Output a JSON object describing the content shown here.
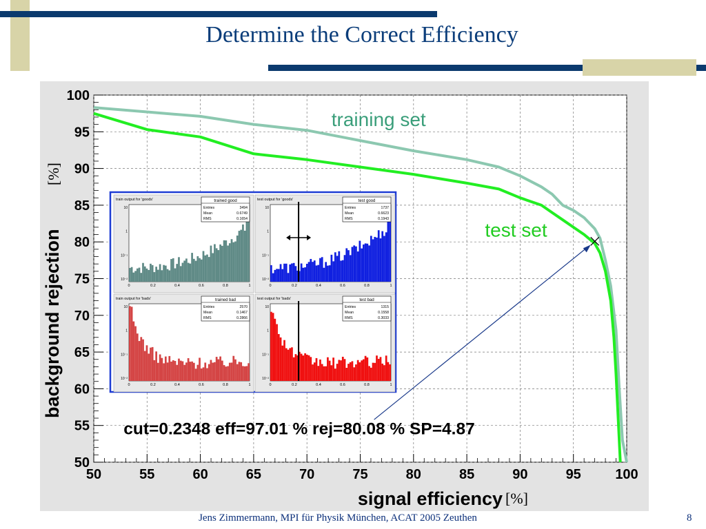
{
  "slide": {
    "title": "Determine the Correct Efficiency",
    "footer": "Jens Zimmermann, MPI für Physik München, ACAT 2005 Zeuthen",
    "page_number": "8"
  },
  "colors": {
    "title": "#0b3d7a",
    "decor_bar": "#0b3a6e",
    "decor_block": "#d8d4a8",
    "training_curve": "#8cc8b0",
    "test_curve": "#22ee22",
    "plot_background": "#e3e3e3",
    "inset_border": "#1e3cd4"
  },
  "chart_data": {
    "type": "line",
    "xlabel": "signal efficiency",
    "xunit": "[%]",
    "ylabel": "background rejection",
    "yunit": "[%]",
    "xlim": [
      50,
      100
    ],
    "ylim": [
      50,
      100
    ],
    "x_ticks": [
      "50",
      "55",
      "60",
      "65",
      "70",
      "75",
      "80",
      "85",
      "90",
      "95",
      "100"
    ],
    "y_ticks": [
      "50",
      "55",
      "60",
      "65",
      "70",
      "75",
      "80",
      "85",
      "90",
      "95",
      "100"
    ],
    "grid": true,
    "annotations": {
      "training_label": "training set",
      "test_label": "test set",
      "result": "cut=0.2348  eff=97.01 %  rej=80.08 %  SP=4.87",
      "marker": [
        97.01,
        80.08
      ]
    },
    "series": [
      {
        "name": "training set",
        "color": "#8cc8b0",
        "x": [
          50,
          55,
          60,
          65,
          70,
          75,
          80,
          85,
          88,
          90,
          92,
          93,
          94,
          95,
          96,
          97,
          97.5,
          98,
          98.5,
          99,
          99.3,
          99.6,
          100
        ],
        "y": [
          98.3,
          97.7,
          97.1,
          96.0,
          95.2,
          93.8,
          92.4,
          91.2,
          90.2,
          89.0,
          87.5,
          86.5,
          85.0,
          84.3,
          83.3,
          81.8,
          80.5,
          77.5,
          74.0,
          68.0,
          60.0,
          53.0,
          50.0
        ]
      },
      {
        "name": "test set",
        "color": "#22ee22",
        "x": [
          50,
          55,
          60,
          65,
          70,
          75,
          80,
          85,
          88,
          90,
          92,
          93,
          94,
          95,
          96,
          97,
          97.5,
          98,
          98.5,
          98.8,
          99.0,
          99.2,
          99.4
        ],
        "y": [
          97.5,
          95.3,
          94.3,
          92.0,
          91.2,
          90.2,
          89.2,
          88.0,
          87.2,
          86.0,
          85.0,
          84.0,
          83.0,
          82.0,
          81.0,
          79.8,
          78.5,
          76.0,
          72.0,
          67.0,
          62.0,
          56.0,
          50.0
        ]
      }
    ],
    "inset_histograms": [
      {
        "panel_title": "train output for 'goods'",
        "stats_title": "trained good",
        "entries": "3494",
        "mean": "0.6749",
        "rms": "0.1654",
        "color": "#5f8a86"
      },
      {
        "panel_title": "test output for 'goods'",
        "stats_title": "test good",
        "entries": "1737",
        "mean": "0.6623",
        "rms": "0.1943",
        "color": "#1020e0"
      },
      {
        "panel_title": "train output for 'bads'",
        "stats_title": "trained bad",
        "entries": "2570",
        "mean": "0.1467",
        "rms": "0.2866",
        "color": "#d44444"
      },
      {
        "panel_title": "test output for 'bads'",
        "stats_title": "test bad",
        "entries": "1315",
        "mean": "0.1558",
        "rms": "0.3033",
        "color": "#f01010"
      }
    ],
    "inset_x_ticks": [
      "0",
      "0.2",
      "0.4",
      "0.6",
      "0.8",
      "1"
    ],
    "inset_y_ticks": [
      "10",
      "1",
      "10⁻¹",
      "10⁻²"
    ],
    "inset_stat_labels": {
      "entries": "Entries",
      "mean": "Mean",
      "rms": "RMS"
    },
    "cut_line_x": 0.2348
  }
}
